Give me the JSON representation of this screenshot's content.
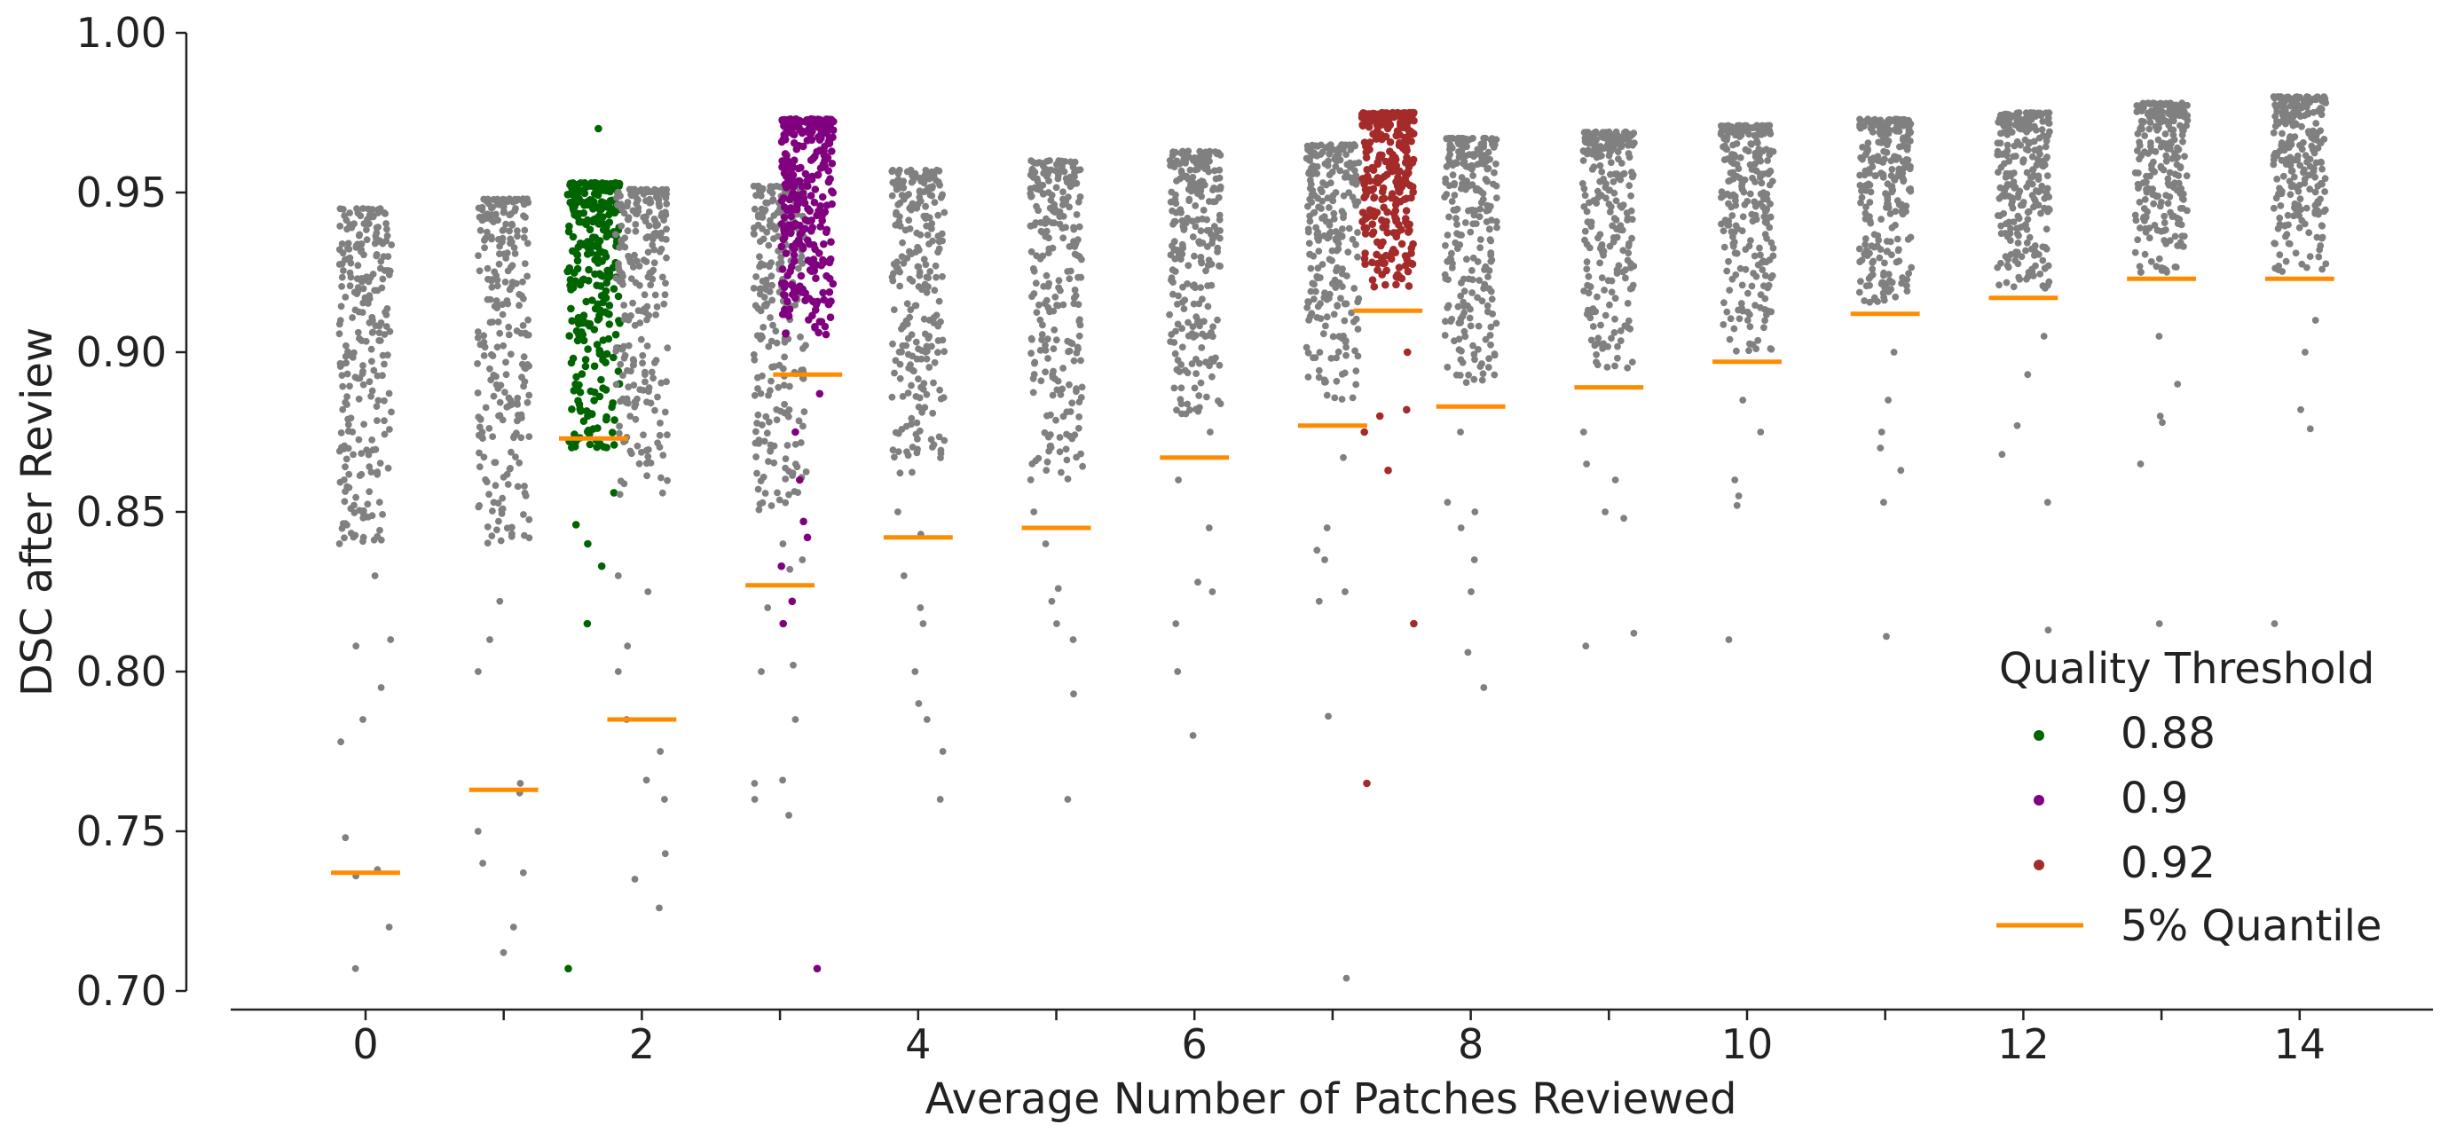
{
  "chart_data": {
    "type": "scatter",
    "subtype": "strip-plot",
    "xlabel": "Average Number of Patches Reviewed",
    "ylabel": "DSC after Review",
    "xlim": [
      -1.3,
      14.6
    ],
    "ylim": [
      0.7,
      1.0
    ],
    "xticks": [
      0,
      2,
      4,
      6,
      8,
      10,
      12,
      14
    ],
    "xtick_labels": [
      "0",
      "2",
      "4",
      "6",
      "8",
      "10",
      "12",
      "14"
    ],
    "yticks": [
      0.7,
      0.75,
      0.8,
      0.85,
      0.9,
      0.95,
      1.0
    ],
    "ytick_labels": [
      "0.70",
      "0.75",
      "0.80",
      "0.85",
      "0.90",
      "0.95",
      "1.00"
    ],
    "grid": false,
    "legend": {
      "title": "Quality Threshold",
      "placement": "lower-right",
      "entries": [
        {
          "label": "0.88",
          "marker": "dot",
          "color": "#006400"
        },
        {
          "label": "0.9",
          "marker": "dot",
          "color": "#800080"
        },
        {
          "label": "0.92",
          "marker": "dot",
          "color": "#A52A2A"
        },
        {
          "label": "5% Quantile",
          "marker": "line",
          "color": "#FF8C00"
        }
      ]
    },
    "colors": {
      "baseline": "#808080",
      "quantile": "#FF8C00",
      "axis": "#222222"
    },
    "series": [
      {
        "x": 0,
        "color": "#808080",
        "n": 250,
        "top": 0.945,
        "dense_low": 0.84,
        "q05": 0.737,
        "min": 0.707,
        "outliers": [
          0.83,
          0.81,
          0.808,
          0.795,
          0.785,
          0.778,
          0.748,
          0.738,
          0.736,
          0.72,
          0.707
        ]
      },
      {
        "x": 1,
        "color": "#808080",
        "n": 250,
        "top": 0.948,
        "dense_low": 0.84,
        "q05": 0.763,
        "min": 0.712,
        "outliers": [
          0.822,
          0.81,
          0.8,
          0.765,
          0.762,
          0.75,
          0.74,
          0.737,
          0.72,
          0.712
        ]
      },
      {
        "x": 1.65,
        "color": "#006400",
        "label": "0.88",
        "n": 300,
        "top": 0.953,
        "dense_low": 0.87,
        "q05": 0.873,
        "min": 0.707,
        "outliers": [
          0.97,
          0.856,
          0.846,
          0.84,
          0.833,
          0.815,
          0.707
        ]
      },
      {
        "x": 2,
        "color": "#808080",
        "n": 250,
        "top": 0.951,
        "dense_low": 0.855,
        "q05": 0.785,
        "min": 0.726,
        "outliers": [
          0.83,
          0.825,
          0.808,
          0.8,
          0.785,
          0.775,
          0.766,
          0.76,
          0.743,
          0.735,
          0.726
        ]
      },
      {
        "x": 3,
        "color": "#808080",
        "n": 250,
        "top": 0.952,
        "dense_low": 0.85,
        "q05": 0.827,
        "min": 0.755,
        "outliers": [
          0.84,
          0.835,
          0.832,
          0.82,
          0.802,
          0.8,
          0.785,
          0.766,
          0.765,
          0.76,
          0.755
        ]
      },
      {
        "x": 3.2,
        "color": "#800080",
        "label": "0.9",
        "n": 300,
        "top": 0.973,
        "dense_low": 0.905,
        "q05": 0.893,
        "min": 0.707,
        "outliers": [
          0.887,
          0.875,
          0.86,
          0.847,
          0.842,
          0.833,
          0.822,
          0.815,
          0.707
        ]
      },
      {
        "x": 4,
        "color": "#808080",
        "n": 250,
        "top": 0.957,
        "dense_low": 0.86,
        "q05": 0.842,
        "min": 0.76,
        "outliers": [
          0.85,
          0.843,
          0.83,
          0.82,
          0.815,
          0.8,
          0.79,
          0.785,
          0.775,
          0.76
        ]
      },
      {
        "x": 5,
        "color": "#808080",
        "n": 250,
        "top": 0.96,
        "dense_low": 0.86,
        "q05": 0.845,
        "min": 0.76,
        "outliers": [
          0.85,
          0.84,
          0.826,
          0.822,
          0.815,
          0.81,
          0.793,
          0.76
        ]
      },
      {
        "x": 6,
        "color": "#808080",
        "n": 250,
        "top": 0.963,
        "dense_low": 0.88,
        "q05": 0.867,
        "min": 0.78,
        "outliers": [
          0.875,
          0.86,
          0.845,
          0.828,
          0.825,
          0.815,
          0.8,
          0.78
        ]
      },
      {
        "x": 7,
        "color": "#808080",
        "n": 250,
        "top": 0.965,
        "dense_low": 0.885,
        "q05": 0.877,
        "min": 0.704,
        "outliers": [
          0.867,
          0.845,
          0.838,
          0.835,
          0.825,
          0.822,
          0.786,
          0.704
        ]
      },
      {
        "x": 7.4,
        "color": "#A52A2A",
        "label": "0.92",
        "n": 300,
        "top": 0.975,
        "dense_low": 0.92,
        "q05": 0.913,
        "min": 0.765,
        "outliers": [
          0.9,
          0.882,
          0.88,
          0.875,
          0.863,
          0.815,
          0.765
        ]
      },
      {
        "x": 8,
        "color": "#808080",
        "n": 250,
        "top": 0.967,
        "dense_low": 0.89,
        "q05": 0.883,
        "min": 0.795,
        "outliers": [
          0.875,
          0.853,
          0.85,
          0.845,
          0.835,
          0.825,
          0.806,
          0.795
        ]
      },
      {
        "x": 9,
        "color": "#808080",
        "n": 250,
        "top": 0.969,
        "dense_low": 0.895,
        "q05": 0.889,
        "min": 0.808,
        "outliers": [
          0.875,
          0.865,
          0.86,
          0.85,
          0.848,
          0.812,
          0.808
        ]
      },
      {
        "x": 10,
        "color": "#808080",
        "n": 250,
        "top": 0.971,
        "dense_low": 0.9,
        "q05": 0.897,
        "min": 0.81,
        "outliers": [
          0.885,
          0.875,
          0.86,
          0.855,
          0.852,
          0.81
        ]
      },
      {
        "x": 11,
        "color": "#808080",
        "n": 250,
        "top": 0.973,
        "dense_low": 0.915,
        "q05": 0.912,
        "min": 0.811,
        "outliers": [
          0.9,
          0.885,
          0.875,
          0.87,
          0.863,
          0.853,
          0.811
        ]
      },
      {
        "x": 12,
        "color": "#808080",
        "n": 250,
        "top": 0.975,
        "dense_low": 0.92,
        "q05": 0.917,
        "min": 0.813,
        "outliers": [
          0.905,
          0.893,
          0.877,
          0.868,
          0.853,
          0.813
        ]
      },
      {
        "x": 13,
        "color": "#808080",
        "n": 250,
        "top": 0.978,
        "dense_low": 0.925,
        "q05": 0.923,
        "min": 0.815,
        "outliers": [
          0.905,
          0.89,
          0.88,
          0.878,
          0.865,
          0.815
        ]
      },
      {
        "x": 14,
        "color": "#808080",
        "n": 250,
        "top": 0.98,
        "dense_low": 0.925,
        "q05": 0.923,
        "min": 0.815,
        "outliers": [
          0.91,
          0.9,
          0.882,
          0.876,
          0.815
        ]
      }
    ]
  }
}
